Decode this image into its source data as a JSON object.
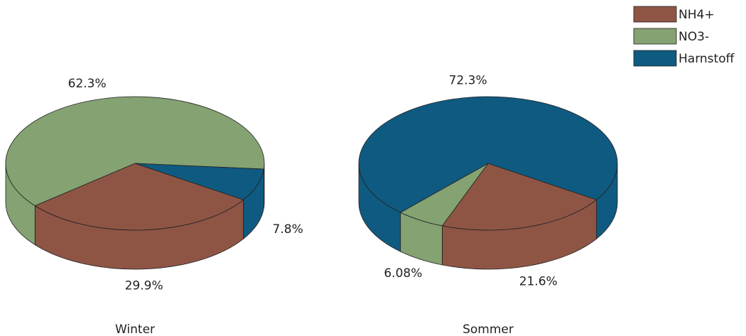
{
  "chart_data": [
    {
      "type": "pie",
      "title": "Winter",
      "categories": [
        "NH4+",
        "NO3-",
        "Harnstoff"
      ],
      "values": [
        29.9,
        62.3,
        7.8
      ],
      "value_labels": [
        "29.9%",
        "62.3%",
        "7.8%"
      ],
      "colors": [
        "#8e5545",
        "#84a272",
        "#0f5a80"
      ]
    },
    {
      "type": "pie",
      "title": "Sommer",
      "categories": [
        "NH4+",
        "NO3-",
        "Harnstoff"
      ],
      "values": [
        21.6,
        6.08,
        72.3
      ],
      "value_labels": [
        "21.6%",
        "6.08%",
        "72.3%"
      ],
      "colors": [
        "#8e5545",
        "#84a272",
        "#0f5a80"
      ]
    }
  ]
}
